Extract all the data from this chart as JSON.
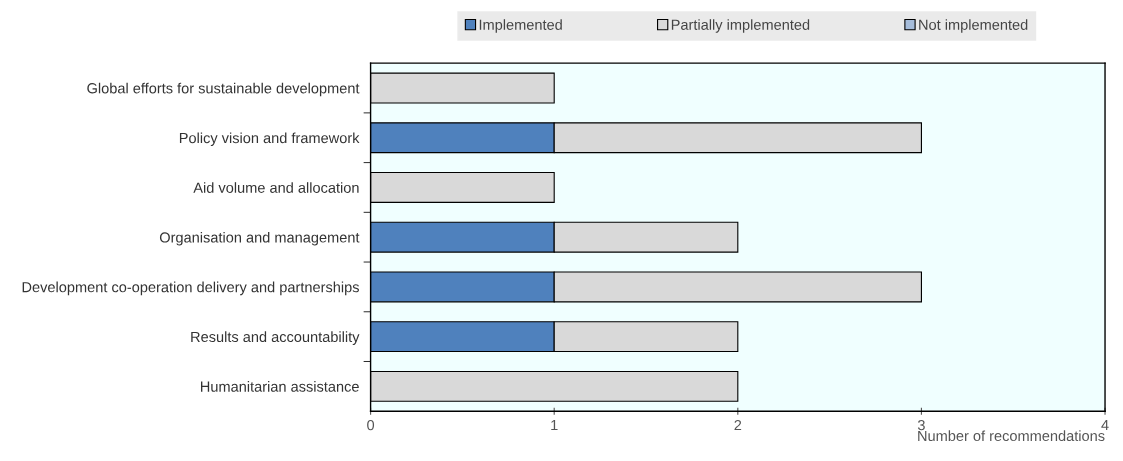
{
  "chart_data": {
    "type": "bar",
    "orientation": "horizontal",
    "stacked": true,
    "xlabel": "Number of recommendations",
    "categories": [
      "Global efforts for sustainable development",
      "Policy vision and framework",
      "Aid volume and allocation",
      "Organisation and management",
      "Development co-operation delivery and partnerships",
      "Results and accountability",
      "Humanitarian assistance"
    ],
    "series": [
      {
        "name": "Implemented",
        "color": "#4f81bd",
        "values": [
          0,
          1,
          0,
          1,
          1,
          1,
          0
        ]
      },
      {
        "name": "Partially implemented",
        "color": "#d9d9d9",
        "values": [
          1,
          2,
          1,
          1,
          2,
          1,
          2
        ]
      },
      {
        "name": "Not implemented",
        "color": "#a6bddb",
        "values": [
          0,
          0,
          0,
          0,
          0,
          0,
          0
        ]
      }
    ],
    "xlim": [
      0,
      4
    ],
    "xticks": [
      0,
      1,
      2,
      3,
      4
    ],
    "grid": false,
    "legend": "top"
  }
}
